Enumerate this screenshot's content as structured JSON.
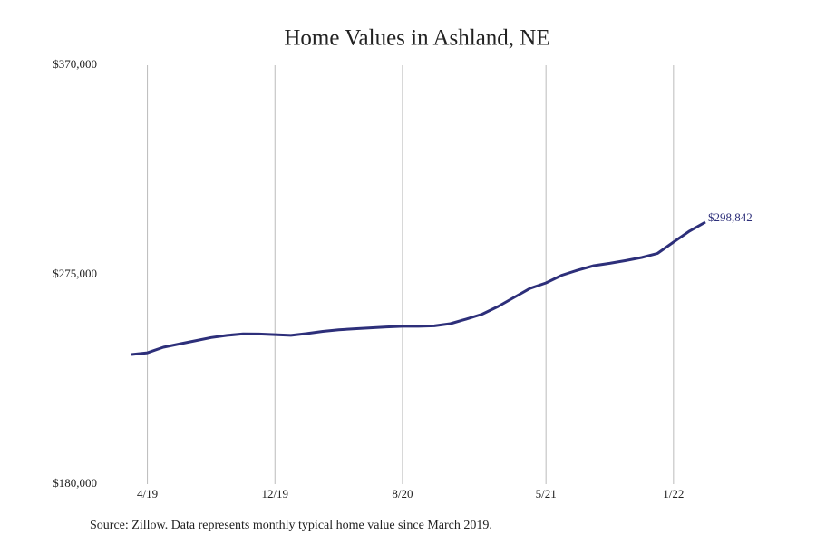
{
  "chart_data": {
    "type": "line",
    "title": "Home Values in Ashland, NE",
    "categories": [
      null,
      "4/19",
      null,
      null,
      null,
      null,
      null,
      null,
      null,
      "12/19",
      null,
      null,
      null,
      null,
      null,
      null,
      null,
      "8/20",
      null,
      null,
      null,
      null,
      null,
      null,
      null,
      null,
      "5/21",
      null,
      null,
      null,
      null,
      null,
      null,
      null,
      "1/22",
      null,
      null
    ],
    "series": [
      {
        "name": null,
        "color": "#2d2f7a",
        "values": [
          238800,
          239600,
          242100,
          243600,
          245000,
          246500,
          247500,
          248200,
          248100,
          247800,
          247500,
          248300,
          249300,
          250000,
          250500,
          250900,
          251300,
          251600,
          251600,
          251800,
          252800,
          254900,
          257100,
          260600,
          264700,
          268800,
          271300,
          274800,
          277100,
          279100,
          280200,
          281400,
          282800,
          284700,
          289800,
          294800,
          298842
        ],
        "value_labels": [
          null,
          null,
          null,
          null,
          null,
          null,
          null,
          null,
          null,
          null,
          null,
          null,
          null,
          null,
          null,
          null,
          null,
          null,
          null,
          null,
          null,
          null,
          null,
          null,
          null,
          null,
          null,
          null,
          null,
          null,
          null,
          null,
          null,
          null,
          null,
          null,
          "$298,842"
        ]
      }
    ],
    "ylim": [
      180000,
      370000
    ],
    "yticks": [
      {
        "value": 180000,
        "label": "$180,000"
      },
      {
        "value": 275000,
        "label": "$275,000"
      },
      {
        "value": 370000,
        "label": "$370,000"
      }
    ],
    "grid": true,
    "source": "Source: Zillow. Data represents monthly typical home value since March 2019."
  }
}
